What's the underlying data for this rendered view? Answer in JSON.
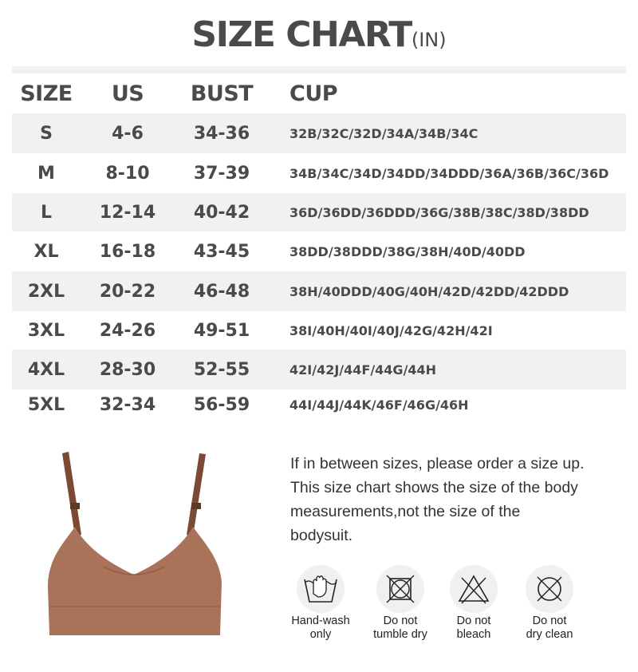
{
  "title": {
    "main": "SIZE CHART",
    "unit": "(IN)"
  },
  "table": {
    "headers": [
      "SIZE",
      "US",
      "BUST",
      "CUP"
    ],
    "rows": [
      [
        "S",
        "4-6",
        "34-36",
        "32B/32C/32D/34A/34B/34C"
      ],
      [
        "M",
        "8-10",
        "37-39",
        "34B/34C/34D/34DD/34DDD/36A/36B/36C/36D"
      ],
      [
        "L",
        "12-14",
        "40-42",
        "36D/36DD/36DDD/36G/38B/38C/38D/38DD"
      ],
      [
        "XL",
        "16-18",
        "43-45",
        "38DD/38DDD/38G/38H/40D/40DD"
      ],
      [
        "2XL",
        "20-22",
        "46-48",
        "38H/40DDD/40G/40H/42D/42DD/42DDD"
      ],
      [
        "3XL",
        "24-26",
        "49-51",
        "38I/40H/40I/40J/42G/42H/42I"
      ],
      [
        "4XL",
        "28-30",
        "52-55",
        "42I/42J/44F/44G/44H"
      ],
      [
        "5XL",
        "32-34",
        "56-59",
        "44I/44J/44K/46F/46G/46H"
      ]
    ]
  },
  "note": [
    "If in between sizes, please order a size up.",
    "This size chart shows the size of the body",
    "measurements,not the size of the",
    "bodysuit."
  ],
  "care": [
    {
      "icon": "hand-wash-icon",
      "label1": "Hand-wash",
      "label2": "only"
    },
    {
      "icon": "no-tumble-dry-icon",
      "label1": "Do not",
      "label2": "tumble dry"
    },
    {
      "icon": "no-bleach-icon",
      "label1": "Do not",
      "label2": "bleach"
    },
    {
      "icon": "no-dry-clean-icon",
      "label1": "Do not",
      "label2": "dry clean"
    }
  ],
  "colors": {
    "text": "#4a4a4a",
    "stripe": "#f1f1f1",
    "garment": "#a9735a",
    "strap": "#7b4a33"
  }
}
